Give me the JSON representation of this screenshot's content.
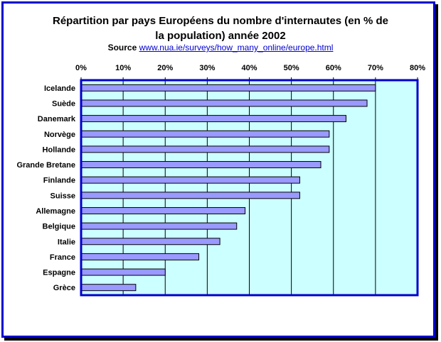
{
  "colors": {
    "frame_border": "#0000cc",
    "plot_background": "#ccffff",
    "bar_fill": "#9999ff",
    "bar_stroke": "#000000",
    "url_color": "#0000cc"
  },
  "header": {
    "title_line1": "Répartition par pays Européens du nombre d'internautes (en % de",
    "title_line2": "la population) année 2002",
    "source_label": "Source",
    "source_url": "www.nua.ie/surveys/how_many_online/europe.html"
  },
  "chart_data": {
    "type": "bar",
    "orientation": "horizontal",
    "title": "Répartition par pays Européens du nombre d'internautes (en % de la population) année 2002",
    "categories": [
      "Icelande",
      "Suède",
      "Danemark",
      "Norvège",
      "Hollande",
      "Grande Bretane",
      "Finlande",
      "Suisse",
      "Allemagne",
      "Belgique",
      "Italie",
      "France",
      "Espagne",
      "Grèce"
    ],
    "values": [
      70,
      68,
      63,
      59,
      59,
      57,
      52,
      52,
      39,
      37,
      33,
      28,
      20,
      13
    ],
    "xlim": [
      0,
      80
    ],
    "x_ticks": [
      "0%",
      "10%",
      "20%",
      "30%",
      "40%",
      "50%",
      "60%",
      "70%",
      "80%"
    ],
    "x_axis_position": "top",
    "grid": true,
    "legend": "none"
  }
}
